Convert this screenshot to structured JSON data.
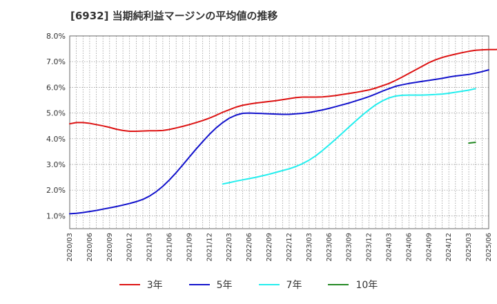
{
  "title": "[6932]  当期純利益マージンの平均値の推移",
  "chart_data": {
    "type": "line",
    "ylim": [
      0.5,
      8.0
    ],
    "yticks": [
      1.0,
      2.0,
      3.0,
      4.0,
      5.0,
      6.0,
      7.0,
      8.0
    ],
    "ytick_labels": [
      "1.0%",
      "2.0%",
      "3.0%",
      "4.0%",
      "5.0%",
      "6.0%",
      "7.0%",
      "8.0%"
    ],
    "xticks": [
      "2020/03",
      "2020/06",
      "2020/09",
      "2020/12",
      "2021/03",
      "2021/06",
      "2021/09",
      "2021/12",
      "2022/03",
      "2022/06",
      "2022/09",
      "2022/12",
      "2023/03",
      "2023/06",
      "2023/09",
      "2023/12",
      "2024/03",
      "2024/06",
      "2024/09",
      "2024/12",
      "2025/03",
      "2025/06"
    ],
    "grid": true,
    "legend_position": "bottom",
    "series": [
      {
        "name": "3年",
        "color": "#dd1111",
        "points": [
          [
            "2020/03",
            4.58
          ],
          [
            "2020/04",
            4.63
          ],
          [
            "2020/05",
            4.63
          ],
          [
            "2020/06",
            4.6
          ],
          [
            "2020/07",
            4.55
          ],
          [
            "2020/08",
            4.5
          ],
          [
            "2020/09",
            4.44
          ],
          [
            "2020/10",
            4.37
          ],
          [
            "2020/11",
            4.32
          ],
          [
            "2020/12",
            4.29
          ],
          [
            "2021/01",
            4.29
          ],
          [
            "2021/02",
            4.3
          ],
          [
            "2021/03",
            4.31
          ],
          [
            "2021/04",
            4.31
          ],
          [
            "2021/05",
            4.32
          ],
          [
            "2021/06",
            4.36
          ],
          [
            "2021/07",
            4.42
          ],
          [
            "2021/08",
            4.48
          ],
          [
            "2021/09",
            4.55
          ],
          [
            "2021/10",
            4.63
          ],
          [
            "2021/11",
            4.71
          ],
          [
            "2021/12",
            4.8
          ],
          [
            "2022/01",
            4.91
          ],
          [
            "2022/02",
            5.03
          ],
          [
            "2022/03",
            5.13
          ],
          [
            "2022/04",
            5.23
          ],
          [
            "2022/05",
            5.3
          ],
          [
            "2022/06",
            5.35
          ],
          [
            "2022/07",
            5.39
          ],
          [
            "2022/08",
            5.42
          ],
          [
            "2022/09",
            5.45
          ],
          [
            "2022/10",
            5.48
          ],
          [
            "2022/11",
            5.52
          ],
          [
            "2022/12",
            5.56
          ],
          [
            "2023/01",
            5.6
          ],
          [
            "2023/02",
            5.62
          ],
          [
            "2023/03",
            5.62
          ],
          [
            "2023/04",
            5.62
          ],
          [
            "2023/05",
            5.63
          ],
          [
            "2023/06",
            5.65
          ],
          [
            "2023/07",
            5.68
          ],
          [
            "2023/08",
            5.72
          ],
          [
            "2023/09",
            5.76
          ],
          [
            "2023/10",
            5.8
          ],
          [
            "2023/11",
            5.85
          ],
          [
            "2023/12",
            5.9
          ],
          [
            "2024/01",
            5.97
          ],
          [
            "2024/02",
            6.06
          ],
          [
            "2024/03",
            6.15
          ],
          [
            "2024/04",
            6.27
          ],
          [
            "2024/05",
            6.4
          ],
          [
            "2024/06",
            6.54
          ],
          [
            "2024/07",
            6.68
          ],
          [
            "2024/08",
            6.82
          ],
          [
            "2024/09",
            6.96
          ],
          [
            "2024/10",
            7.07
          ],
          [
            "2024/11",
            7.16
          ],
          [
            "2024/12",
            7.23
          ],
          [
            "2025/01",
            7.29
          ],
          [
            "2025/02",
            7.35
          ],
          [
            "2025/03",
            7.4
          ],
          [
            "2025/04",
            7.44
          ],
          [
            "2025/05",
            7.46
          ],
          [
            "2025/06",
            7.47
          ],
          [
            "2025/07",
            7.47
          ],
          [
            "2025/08",
            7.48
          ],
          [
            "2025/09",
            7.5
          ],
          [
            "2025/10",
            7.52
          ]
        ]
      },
      {
        "name": "5年",
        "color": "#1111cc",
        "points": [
          [
            "2020/03",
            1.08
          ],
          [
            "2020/04",
            1.1
          ],
          [
            "2020/05",
            1.13
          ],
          [
            "2020/06",
            1.17
          ],
          [
            "2020/07",
            1.21
          ],
          [
            "2020/08",
            1.26
          ],
          [
            "2020/09",
            1.31
          ],
          [
            "2020/10",
            1.36
          ],
          [
            "2020/11",
            1.42
          ],
          [
            "2020/12",
            1.48
          ],
          [
            "2021/01",
            1.55
          ],
          [
            "2021/02",
            1.64
          ],
          [
            "2021/03",
            1.77
          ],
          [
            "2021/04",
            1.94
          ],
          [
            "2021/05",
            2.15
          ],
          [
            "2021/06",
            2.4
          ],
          [
            "2021/07",
            2.68
          ],
          [
            "2021/08",
            2.98
          ],
          [
            "2021/09",
            3.29
          ],
          [
            "2021/10",
            3.6
          ],
          [
            "2021/11",
            3.89
          ],
          [
            "2021/12",
            4.17
          ],
          [
            "2022/01",
            4.42
          ],
          [
            "2022/02",
            4.63
          ],
          [
            "2022/03",
            4.8
          ],
          [
            "2022/04",
            4.92
          ],
          [
            "2022/05",
            4.99
          ],
          [
            "2022/06",
            5.0
          ],
          [
            "2022/07",
            4.99
          ],
          [
            "2022/08",
            4.98
          ],
          [
            "2022/09",
            4.97
          ],
          [
            "2022/10",
            4.96
          ],
          [
            "2022/11",
            4.95
          ],
          [
            "2022/12",
            4.95
          ],
          [
            "2023/01",
            4.97
          ],
          [
            "2023/02",
            4.99
          ],
          [
            "2023/03",
            5.02
          ],
          [
            "2023/04",
            5.07
          ],
          [
            "2023/05",
            5.12
          ],
          [
            "2023/06",
            5.18
          ],
          [
            "2023/07",
            5.25
          ],
          [
            "2023/08",
            5.32
          ],
          [
            "2023/09",
            5.39
          ],
          [
            "2023/10",
            5.47
          ],
          [
            "2023/11",
            5.55
          ],
          [
            "2023/12",
            5.64
          ],
          [
            "2024/01",
            5.74
          ],
          [
            "2024/02",
            5.85
          ],
          [
            "2024/03",
            5.95
          ],
          [
            "2024/04",
            6.04
          ],
          [
            "2024/05",
            6.1
          ],
          [
            "2024/06",
            6.15
          ],
          [
            "2024/07",
            6.19
          ],
          [
            "2024/08",
            6.23
          ],
          [
            "2024/09",
            6.27
          ],
          [
            "2024/10",
            6.31
          ],
          [
            "2024/11",
            6.35
          ],
          [
            "2024/12",
            6.4
          ],
          [
            "2025/01",
            6.44
          ],
          [
            "2025/02",
            6.47
          ],
          [
            "2025/03",
            6.5
          ],
          [
            "2025/04",
            6.55
          ],
          [
            "2025/05",
            6.61
          ],
          [
            "2025/06",
            6.68
          ]
        ]
      },
      {
        "name": "7年",
        "color": "#22eeee",
        "points": [
          [
            "2022/02",
            2.24
          ],
          [
            "2022/03",
            2.29
          ],
          [
            "2022/04",
            2.35
          ],
          [
            "2022/05",
            2.4
          ],
          [
            "2022/06",
            2.45
          ],
          [
            "2022/07",
            2.5
          ],
          [
            "2022/08",
            2.56
          ],
          [
            "2022/09",
            2.62
          ],
          [
            "2022/10",
            2.69
          ],
          [
            "2022/11",
            2.76
          ],
          [
            "2022/12",
            2.83
          ],
          [
            "2023/01",
            2.92
          ],
          [
            "2023/02",
            3.03
          ],
          [
            "2023/03",
            3.17
          ],
          [
            "2023/04",
            3.34
          ],
          [
            "2023/05",
            3.54
          ],
          [
            "2023/06",
            3.76
          ],
          [
            "2023/07",
            3.99
          ],
          [
            "2023/08",
            4.22
          ],
          [
            "2023/09",
            4.46
          ],
          [
            "2023/10",
            4.69
          ],
          [
            "2023/11",
            4.92
          ],
          [
            "2023/12",
            5.13
          ],
          [
            "2024/01",
            5.32
          ],
          [
            "2024/02",
            5.47
          ],
          [
            "2024/03",
            5.59
          ],
          [
            "2024/04",
            5.66
          ],
          [
            "2024/05",
            5.69
          ],
          [
            "2024/06",
            5.7
          ],
          [
            "2024/07",
            5.7
          ],
          [
            "2024/08",
            5.7
          ],
          [
            "2024/09",
            5.71
          ],
          [
            "2024/10",
            5.72
          ],
          [
            "2024/11",
            5.74
          ],
          [
            "2024/12",
            5.77
          ],
          [
            "2025/01",
            5.81
          ],
          [
            "2025/02",
            5.85
          ],
          [
            "2025/03",
            5.89
          ],
          [
            "2025/04",
            5.95
          ]
        ]
      },
      {
        "name": "10年",
        "color": "#228822",
        "points": [
          [
            "2025/03",
            3.83
          ],
          [
            "2025/04",
            3.86
          ]
        ]
      }
    ]
  }
}
